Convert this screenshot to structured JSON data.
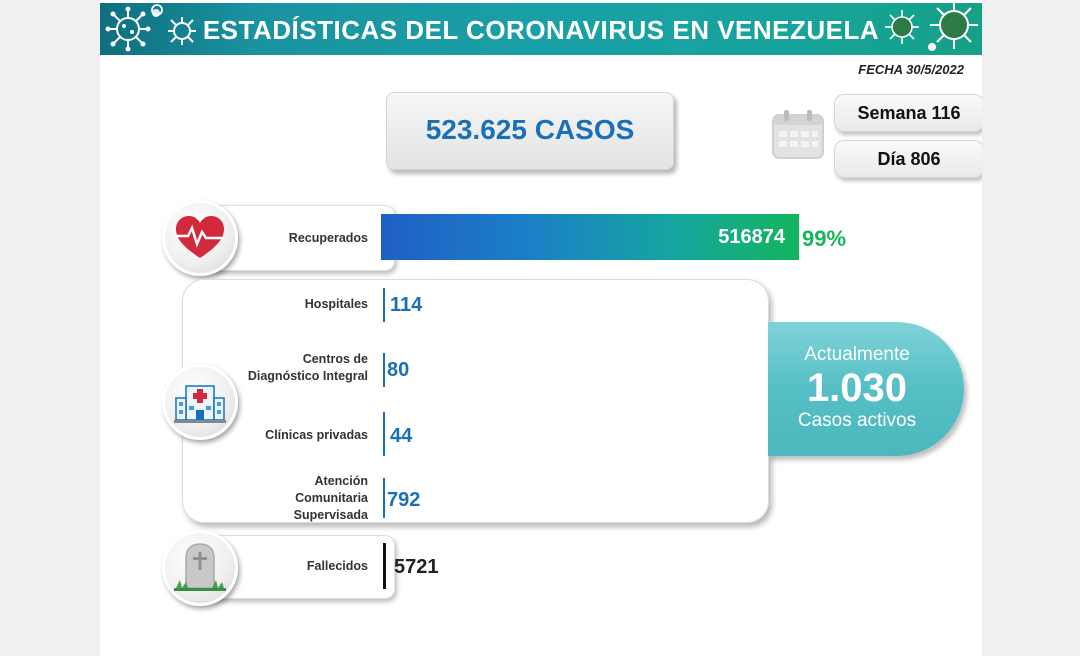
{
  "header": {
    "title": "ESTADÍSTICAS DEL CORONAVIRUS EN VENEZUELA"
  },
  "fecha": "FECHA 30/5/2022",
  "total_cases": "523.625 CASOS",
  "week": "Semana 116",
  "day": "Día 806",
  "recuperados": {
    "label": "Recuperados",
    "value": "516874",
    "percent": "99%"
  },
  "hospital_rows": [
    {
      "label": "Hospitales",
      "value": "114"
    },
    {
      "label_lines": [
        "Centros de",
        "Diagnóstico Integral"
      ],
      "value": "80"
    },
    {
      "label": "Clínicas privadas",
      "value": "44"
    },
    {
      "label_lines": [
        "Atención",
        "Comunitaria",
        "Supervisada"
      ],
      "value": "792"
    }
  ],
  "active": {
    "line1": "Actualmente",
    "number": "1.030",
    "line2": "Casos activos"
  },
  "fallecidos": {
    "label": "Fallecidos",
    "value": "5721"
  },
  "icons": [
    "virus-icon",
    "calendar-icon",
    "heart-icon",
    "hospital-icon",
    "gravestone-icon"
  ],
  "colors": {
    "banner": "#19a0a6",
    "accent_blue": "#1a70b8",
    "accent_green": "#19b55a",
    "active_bubble": "#55bfc5"
  }
}
